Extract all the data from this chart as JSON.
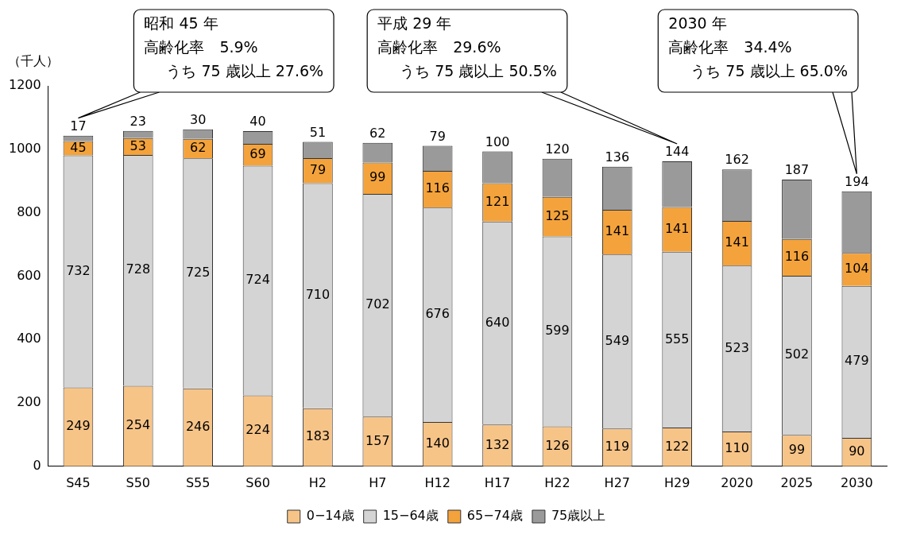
{
  "chart_data": {
    "type": "bar",
    "stacked": true,
    "ylabel": "（千人）",
    "categories": [
      "S45",
      "S50",
      "S55",
      "S60",
      "H2",
      "H7",
      "H12",
      "H17",
      "H22",
      "H27",
      "H29",
      "2020",
      "2025",
      "2030"
    ],
    "series": [
      {
        "name": "0−14歳",
        "color": "#f7c488",
        "values": [
          249,
          254,
          246,
          224,
          183,
          157,
          140,
          132,
          126,
          119,
          122,
          110,
          99,
          90
        ]
      },
      {
        "name": "15−64歳",
        "color": "#d4d4d4",
        "values": [
          732,
          728,
          725,
          724,
          710,
          702,
          676,
          640,
          599,
          549,
          555,
          523,
          502,
          479
        ]
      },
      {
        "name": "65−74歳",
        "color": "#f4a33c",
        "values": [
          45,
          53,
          62,
          69,
          79,
          99,
          116,
          121,
          125,
          141,
          141,
          141,
          116,
          104
        ]
      },
      {
        "name": "75歳以上",
        "color": "#9a9a9a",
        "values": [
          17,
          23,
          30,
          40,
          51,
          62,
          79,
          100,
          120,
          136,
          144,
          162,
          187,
          194
        ]
      }
    ],
    "ylim": [
      0,
      1200
    ],
    "yticks": [
      0,
      200,
      400,
      600,
      800,
      1000,
      1200
    ],
    "grid": false,
    "legend": "bottom",
    "data_labels": true,
    "annotations": [
      "昭和 45 年",
      "高齢化率　5.9%",
      "うち 75 歳以上 27.6%",
      "平成 29 年",
      "高齢化率　29.6%",
      "うち 75 歳以上 50.5%",
      "2030 年",
      "高齢化率　34.4%",
      "うち 75 歳以上 65.0%"
    ]
  }
}
